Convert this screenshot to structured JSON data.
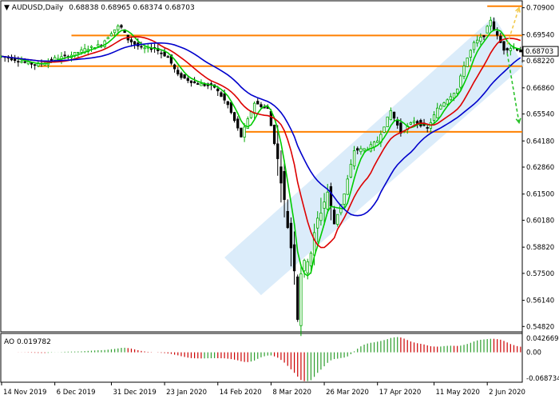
{
  "header": {
    "symbol": "AUDUSD,Daily",
    "ohlc": "0.68838 0.68965 0.68374 0.68703"
  },
  "indicator": {
    "label": "AO 0.019782"
  },
  "chart_data": {
    "type": "candlestick",
    "symbol": "AUDUSD",
    "timeframe": "Daily",
    "last_bar": {
      "open": 0.68838,
      "high": 0.68965,
      "low": 0.68374,
      "close": 0.68703
    },
    "current_price_label": "0.68703",
    "price_axis_ticks": [
      "0.70900",
      "0.69540",
      "0.68220",
      "0.66860",
      "0.65540",
      "0.64180",
      "0.62860",
      "0.61500",
      "0.60180",
      "0.58820",
      "0.57500",
      "0.56140",
      "0.54820"
    ],
    "ylim": [
      0.5455,
      0.7125
    ],
    "x_labels": [
      "14 Nov 2019",
      "6 Dec 2019",
      "31 Dec 2019",
      "23 Jan 2020",
      "14 Feb 2020",
      "8 Mar 2020",
      "26 Mar 2020",
      "17 Apr 2020",
      "11 May 2020",
      "2 Jun 2020"
    ],
    "x_label_bars": [
      0,
      16,
      33,
      49,
      65,
      81,
      97,
      113,
      130,
      146
    ],
    "bar_count": 157,
    "close_anchors": [
      [
        0,
        0.6845
      ],
      [
        10,
        0.6803
      ],
      [
        14,
        0.6818
      ],
      [
        16,
        0.6835
      ],
      [
        20,
        0.6845
      ],
      [
        25,
        0.688
      ],
      [
        30,
        0.6905
      ],
      [
        33,
        0.6965
      ],
      [
        35,
        0.6995
      ],
      [
        36,
        0.699
      ],
      [
        38,
        0.693
      ],
      [
        42,
        0.6885
      ],
      [
        46,
        0.6885
      ],
      [
        50,
        0.684
      ],
      [
        53,
        0.675
      ],
      [
        58,
        0.671
      ],
      [
        64,
        0.669
      ],
      [
        68,
        0.66
      ],
      [
        72,
        0.644
      ],
      [
        76,
        0.661
      ],
      [
        80,
        0.658
      ],
      [
        82,
        0.641
      ],
      [
        84,
        0.623
      ],
      [
        86,
        0.599
      ],
      [
        88,
        0.578
      ],
      [
        89,
        0.553
      ],
      [
        90,
        0.576
      ],
      [
        93,
        0.586
      ],
      [
        95,
        0.602
      ],
      [
        98,
        0.616
      ],
      [
        100,
        0.6
      ],
      [
        103,
        0.615
      ],
      [
        106,
        0.637
      ],
      [
        110,
        0.638
      ],
      [
        113,
        0.642
      ],
      [
        117,
        0.657
      ],
      [
        120,
        0.646
      ],
      [
        124,
        0.652
      ],
      [
        128,
        0.648
      ],
      [
        131,
        0.658
      ],
      [
        134,
        0.663
      ],
      [
        137,
        0.668
      ],
      [
        139,
        0.68
      ],
      [
        142,
        0.691
      ],
      [
        145,
        0.695
      ],
      [
        147,
        0.703
      ],
      [
        148,
        0.698
      ],
      [
        151,
        0.688
      ],
      [
        154,
        0.689
      ],
      [
        156,
        0.687
      ]
    ],
    "resistance_support_lines": [
      {
        "price": 0.7098,
        "from_bar": 146
      },
      {
        "price": 0.695,
        "from_bar": 21
      },
      {
        "price": 0.6795,
        "from_bar": 11
      },
      {
        "price": 0.6464,
        "from_bar": 73
      }
    ],
    "moving_averages": [
      {
        "color": "#00cc00",
        "period": 5
      },
      {
        "color": "#dd0000",
        "period": 12
      },
      {
        "color": "#0000cc",
        "period": 25
      }
    ],
    "channel": {
      "upper": [
        [
          67,
          0.583
        ],
        [
          148,
          0.7045
        ]
      ],
      "lower": [
        [
          78,
          0.564
        ],
        [
          157,
          0.68
        ]
      ]
    },
    "forecast_up": {
      "color": "#f2c94c",
      "from": [
        152,
        0.6905
      ],
      "to": [
        158,
        0.709
      ]
    },
    "forecast_down": {
      "color": "#29c229",
      "from": [
        152,
        0.686
      ],
      "to": [
        157,
        0.651
      ]
    },
    "ao_ticks": [
      "0.042669",
      "0.00",
      "-0.068734"
    ],
    "ao_range": [
      -0.068734,
      0.042669
    ],
    "colors": {
      "bullish_candle": "#00aa00",
      "bearish_candle": "#000000",
      "level_line": "#ff8000",
      "channel_fill": "#cfe5f8",
      "ao_up": "#2e9e2e",
      "ao_down": "#cc0000"
    }
  }
}
